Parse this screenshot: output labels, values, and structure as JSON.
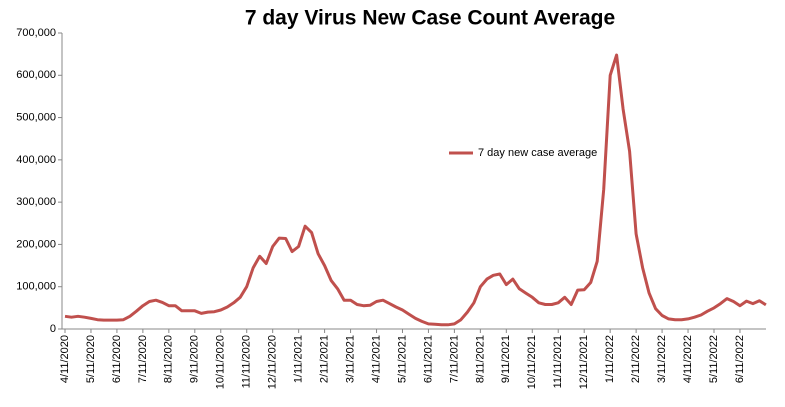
{
  "chart_data": {
    "type": "line",
    "title": "7 day Virus New Case Count Average",
    "categories": [
      "4/11/2020",
      null,
      null,
      null,
      "5/11/2020",
      null,
      null,
      null,
      "6/11/2020",
      null,
      null,
      null,
      "7/11/2020",
      null,
      null,
      null,
      "8/11/2020",
      null,
      null,
      null,
      "9/11/2020",
      null,
      null,
      null,
      "10/11/2020",
      null,
      null,
      null,
      "11/11/2020",
      null,
      null,
      null,
      "12/11/2020",
      null,
      null,
      null,
      "1/11/2021",
      null,
      null,
      null,
      "2/11/2021",
      null,
      null,
      null,
      "3/11/2021",
      null,
      null,
      null,
      "4/11/2021",
      null,
      null,
      null,
      "5/11/2021",
      null,
      null,
      null,
      "6/11/2021",
      null,
      null,
      null,
      "7/11/2021",
      null,
      null,
      null,
      "8/11/2021",
      null,
      null,
      null,
      "9/11/2021",
      null,
      null,
      null,
      "10/11/2021",
      null,
      null,
      null,
      "11/11/2021",
      null,
      null,
      null,
      "12/11/2021",
      null,
      null,
      null,
      "1/11/2022",
      null,
      null,
      null,
      "2/11/2022",
      null,
      null,
      null,
      "3/11/2022",
      null,
      null,
      null,
      "4/11/2022",
      null,
      null,
      null,
      "5/11/2022",
      null,
      null,
      null,
      "6/11/2022",
      null,
      null,
      null,
      null
    ],
    "series": [
      {
        "name": "7 day new case average",
        "color": "#c0504d",
        "values": [
          30000,
          28000,
          30000,
          28000,
          25000,
          22000,
          21000,
          21000,
          21000,
          22000,
          30000,
          42000,
          55000,
          65000,
          68000,
          63000,
          55000,
          55000,
          43000,
          43000,
          43000,
          37000,
          40000,
          41000,
          45000,
          52000,
          62000,
          75000,
          100000,
          145000,
          172000,
          155000,
          195000,
          215000,
          214000,
          183000,
          195000,
          243000,
          228000,
          178000,
          150000,
          115000,
          95000,
          68000,
          68000,
          58000,
          55000,
          56000,
          65000,
          68000,
          60000,
          52000,
          45000,
          35000,
          25000,
          18000,
          12000,
          11000,
          10000,
          10000,
          12000,
          22000,
          40000,
          62000,
          100000,
          118000,
          127000,
          130000,
          105000,
          118000,
          95000,
          85000,
          75000,
          62000,
          58000,
          58000,
          62000,
          75000,
          58000,
          92000,
          93000,
          110000,
          160000,
          330000,
          600000,
          648000,
          520000,
          420000,
          225000,
          145000,
          85000,
          48000,
          32000,
          24000,
          22000,
          22000,
          24000,
          28000,
          33000,
          42000,
          50000,
          60000,
          72000,
          65000,
          55000,
          66000,
          60000,
          67000,
          57000
        ]
      }
    ],
    "ylim": [
      0,
      700000
    ],
    "yticks": [
      0,
      {
        "value": 100000,
        "label": "100,000"
      },
      {
        "value": 200000,
        "label": "200,000"
      },
      {
        "value": 300000,
        "label": "300,000"
      },
      {
        "value": 400000,
        "label": "400,000"
      },
      {
        "value": 500000,
        "label": "500,000"
      },
      {
        "value": 600000,
        "label": "600,000"
      },
      {
        "value": 700000,
        "label": "700,000"
      }
    ],
    "grid": false,
    "legend_position": "center"
  }
}
